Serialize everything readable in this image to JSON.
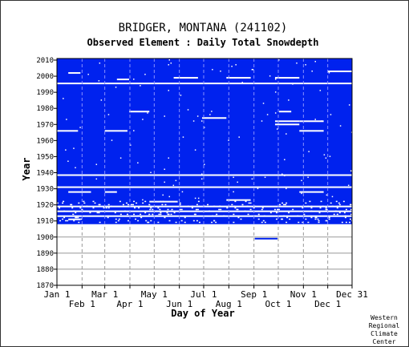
{
  "chart_data": {
    "type": "heatmap",
    "title": "BRIDGER, MONTANA   (241102)",
    "subtitle": "Observed Element : Daily Total Snowdepth",
    "xlabel": "Day of Year",
    "ylabel": "Year",
    "xlim": [
      "Jan 1",
      "Dec 31"
    ],
    "ylim": [
      1870,
      2011
    ],
    "x_ticks_upper": [
      {
        "label": "Jan 1",
        "day": 1
      },
      {
        "label": "Mar 1",
        "day": 60
      },
      {
        "label": "May 1",
        "day": 121
      },
      {
        "label": "Jul 1",
        "day": 182
      },
      {
        "label": "Sep 1",
        "day": 244
      },
      {
        "label": "Nov 1",
        "day": 305
      },
      {
        "label": "Dec 31",
        "day": 365
      }
    ],
    "x_ticks_lower": [
      {
        "label": "Feb 1",
        "day": 32
      },
      {
        "label": "Apr 1",
        "day": 91
      },
      {
        "label": "Jun 1",
        "day": 152
      },
      {
        "label": "Aug 1",
        "day": 213
      },
      {
        "label": "Oct 1",
        "day": 274
      },
      {
        "label": "Dec 1",
        "day": 335
      }
    ],
    "y_ticks": [
      1870,
      1880,
      1890,
      1900,
      1910,
      1920,
      1930,
      1940,
      1950,
      1960,
      1970,
      1980,
      1990,
      2000,
      2010
    ],
    "data_color": "#0022ee",
    "data_present_years": [
      1908,
      2010
    ],
    "missing_full_years": [
      1995,
      1938
    ],
    "missing_segments": [
      {
        "year": 2002,
        "start_day": 15,
        "end_day": 30
      },
      {
        "year": 1998,
        "start_day": 75,
        "end_day": 90
      },
      {
        "year": 1999,
        "start_day": 145,
        "end_day": 175
      },
      {
        "year": 1999,
        "start_day": 210,
        "end_day": 240
      },
      {
        "year": 1999,
        "start_day": 270,
        "end_day": 300
      },
      {
        "year": 2003,
        "start_day": 335,
        "end_day": 365
      },
      {
        "year": 1978,
        "start_day": 90,
        "end_day": 115
      },
      {
        "year": 1966,
        "start_day": 1,
        "end_day": 27
      },
      {
        "year": 1966,
        "start_day": 60,
        "end_day": 88
      },
      {
        "year": 1974,
        "start_day": 180,
        "end_day": 210
      },
      {
        "year": 1978,
        "start_day": 275,
        "end_day": 290
      },
      {
        "year": 1972,
        "start_day": 270,
        "end_day": 300
      },
      {
        "year": 1970,
        "start_day": 270,
        "end_day": 300
      },
      {
        "year": 1972,
        "start_day": 300,
        "end_day": 330
      },
      {
        "year": 1966,
        "start_day": 300,
        "end_day": 330
      },
      {
        "year": 1928,
        "start_day": 15,
        "end_day": 43
      },
      {
        "year": 1928,
        "start_day": 60,
        "end_day": 75
      },
      {
        "year": 1931,
        "start_day": 1,
        "end_day": 365
      },
      {
        "year": 1923,
        "start_day": 210,
        "end_day": 240
      },
      {
        "year": 1922,
        "start_day": 115,
        "end_day": 150
      },
      {
        "year": 1928,
        "start_day": 300,
        "end_day": 330
      },
      {
        "year": 1919,
        "start_day": 1,
        "end_day": 365
      },
      {
        "year": 1916,
        "start_day": 1,
        "end_day": 365
      },
      {
        "year": 1913,
        "start_day": 1,
        "end_day": 365
      },
      {
        "year": 1911,
        "start_day": 15,
        "end_day": 30
      }
    ],
    "data_segments_outside": [
      {
        "year": 1899,
        "start_day": 245,
        "end_day": 273
      }
    ],
    "credit": [
      "Western",
      "Regional",
      "Climate",
      "Center"
    ]
  }
}
